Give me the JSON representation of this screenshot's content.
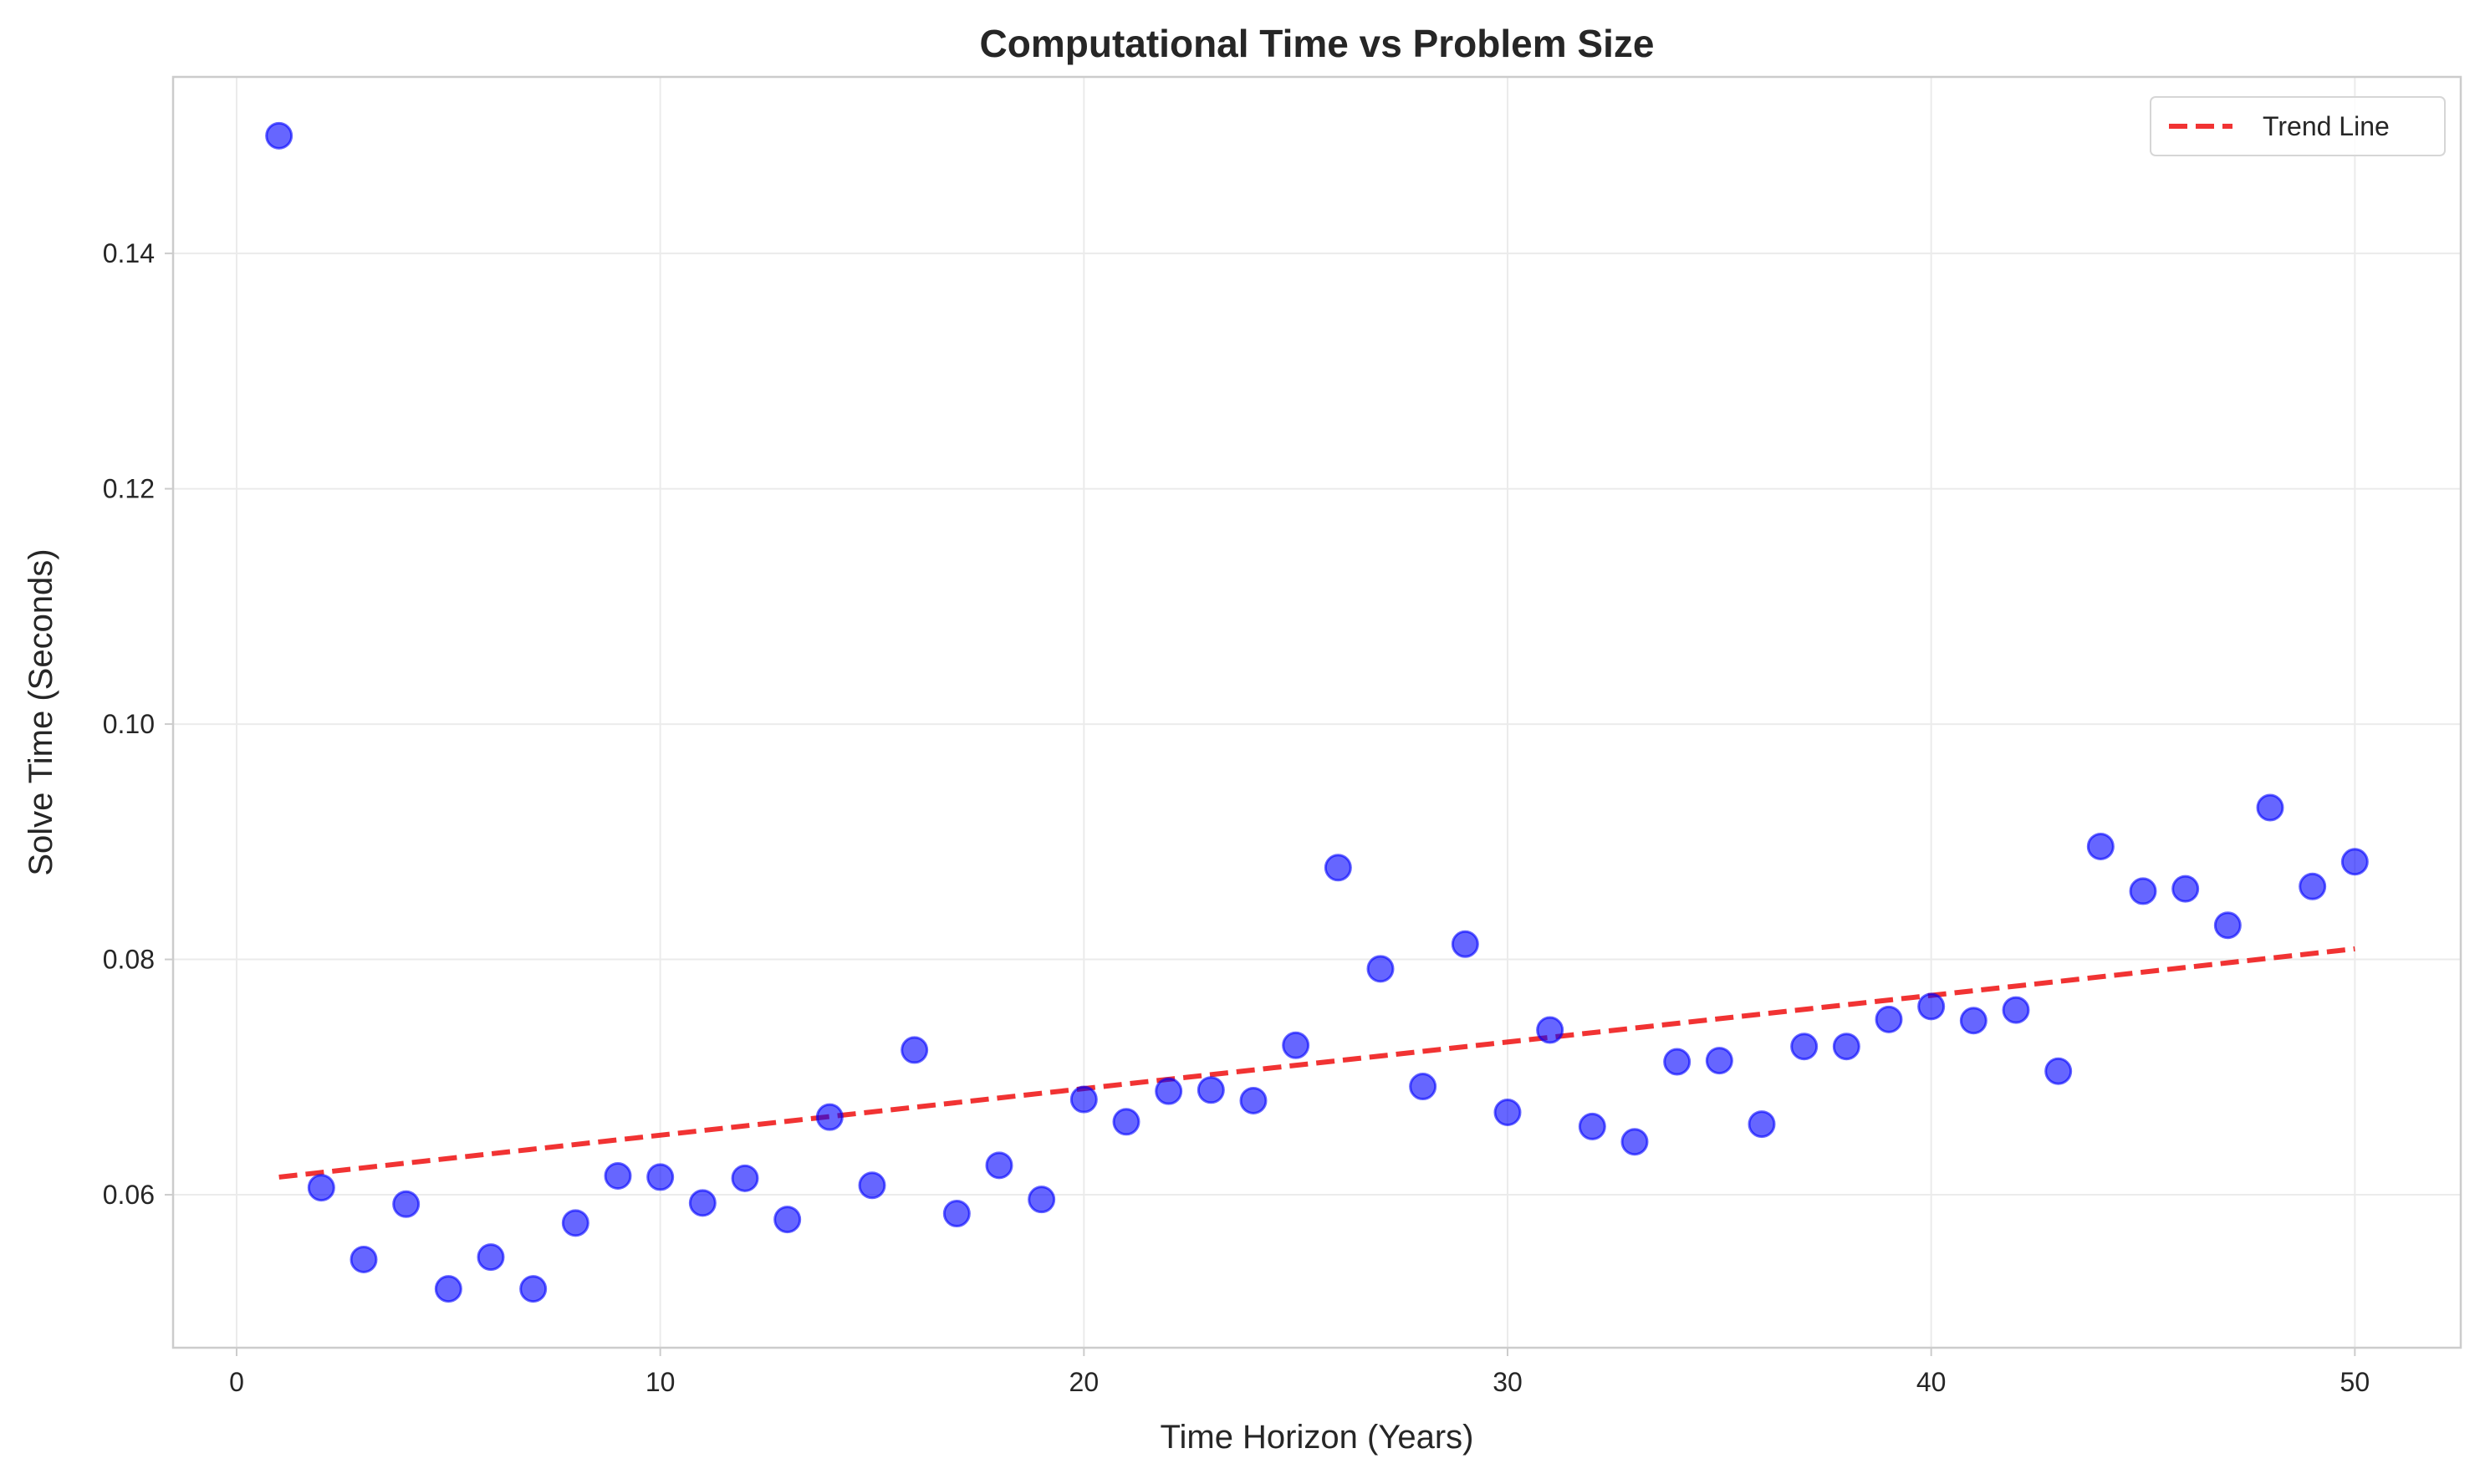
{
  "chart_data": {
    "type": "scatter",
    "title": "Computational Time vs Problem Size",
    "xlabel": "Time Horizon (Years)",
    "ylabel": "Solve Time (Seconds)",
    "xlim": [
      -1.5,
      52.5
    ],
    "ylim": [
      0.047,
      0.155
    ],
    "xticks": [
      0,
      10,
      20,
      30,
      40,
      50
    ],
    "xtick_labels": [
      "0",
      "10",
      "20",
      "30",
      "40",
      "50"
    ],
    "yticks": [
      0.06,
      0.08,
      0.1,
      0.12,
      0.14
    ],
    "ytick_labels": [
      "0.06",
      "0.08",
      "0.10",
      "0.12",
      "0.14"
    ],
    "grid": true,
    "legend_position": "top-right",
    "point_color": "#0000ff",
    "trend_color": "#ee0000",
    "x": [
      1,
      2,
      3,
      4,
      5,
      6,
      7,
      8,
      9,
      10,
      11,
      12,
      13,
      14,
      15,
      16,
      17,
      18,
      19,
      20,
      21,
      22,
      23,
      24,
      25,
      26,
      27,
      28,
      29,
      30,
      31,
      32,
      33,
      34,
      35,
      36,
      37,
      38,
      39,
      40,
      41,
      42,
      43,
      44,
      45,
      46,
      47,
      48,
      49,
      50
    ],
    "y": [
      0.15,
      0.0606,
      0.0545,
      0.0592,
      0.052,
      0.0547,
      0.052,
      0.0576,
      0.0616,
      0.0615,
      0.0593,
      0.0614,
      0.0579,
      0.0666,
      0.0608,
      0.0723,
      0.0584,
      0.0625,
      0.0596,
      0.0681,
      0.0662,
      0.0688,
      0.0689,
      0.068,
      0.0727,
      0.0878,
      0.0792,
      0.0692,
      0.0813,
      0.067,
      0.074,
      0.0658,
      0.0645,
      0.0713,
      0.0714,
      0.066,
      0.0726,
      0.0726,
      0.0749,
      0.076,
      0.0748,
      0.0757,
      0.0705,
      0.0896,
      0.0858,
      0.086,
      0.0829,
      0.0929,
      0.0862,
      0.0883
    ],
    "series": [
      {
        "name": "Trend Line",
        "type": "line",
        "style": "dashed",
        "x": [
          1,
          50
        ],
        "y": [
          0.0615,
          0.0809
        ]
      }
    ]
  }
}
